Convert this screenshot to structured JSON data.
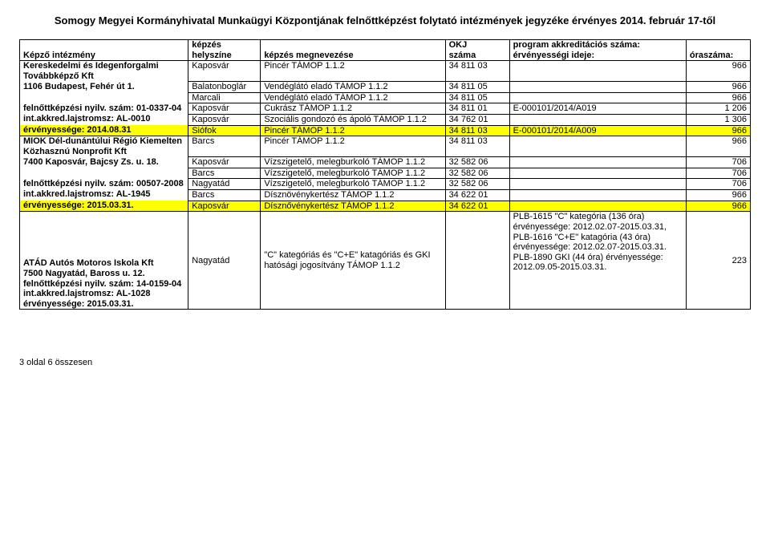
{
  "title": "Somogy Megyei Kormányhivatal Munkaügyi Központjának felnőttképzést folytató intézmények jegyzéke  érvényes 2014. február 17-től",
  "headers": {
    "col1": "Képző intézmény",
    "col2_a": "képzés",
    "col2_b": "helyszíne",
    "col3": "képzés megnevezése",
    "col4_a": "OKJ",
    "col4_b": "száma",
    "col5_a": "program akkreditációs száma:",
    "col5_b": "érvényességi ideje:",
    "col6": "óraszáma:"
  },
  "rows": [
    {
      "c1": "Kereskedelmi és Idegenforgalmi Továbbképző Kft",
      "c2": "Kaposvár",
      "c3": "Pincér TÁMOP 1.1.2",
      "c4": "34 811 03",
      "c5": "",
      "c6": "966"
    },
    {
      "c1": "1106 Budapest, Fehér út 1.",
      "c2": "Balatonboglár",
      "c3": "Vendéglátó eladó TÁMOP 1.1.2",
      "c4": "34 811 05",
      "c5": "",
      "c6": "966"
    },
    {
      "c1": "",
      "c2": "Marcali",
      "c3": "Vendéglátó eladó TÁMOP 1.1.2",
      "c4": "34 811 05",
      "c5": "",
      "c6": "966"
    },
    {
      "c1": "felnőttképzési nyilv. szám: 01-0337-04",
      "c2": "Kaposvár",
      "c3": "Cukrász TÁMOP 1.1.2",
      "c4": "34 811 01",
      "c5": "E-000101/2014/A019",
      "c6": "1 206"
    },
    {
      "c1": "int.akkred.lajstromsz: AL-0010",
      "c2": "Kaposvár",
      "c3": "Szociális gondozó és ápoló TÁMOP 1.1.2",
      "c4": "34 762 01",
      "c5": "",
      "c6": "1 306"
    },
    {
      "c1": "érvényessége: 2014.08.31",
      "c2": "Siófok",
      "c3": "Pincér TÁMOP 1.1.2",
      "c4": "34 811 03",
      "c5": "E-000101/2014/A009",
      "c6": "966",
      "hl": true
    },
    {
      "c1": "MIOK Dél-dunántúlui Régió Kiemelten Közhasznú Nonprofit Kft",
      "c2": "Barcs",
      "c3": "Pincér TÁMOP 1.1.2",
      "c4": "34 811 03",
      "c5": "",
      "c6": "966"
    },
    {
      "c1": "7400 Kaposvár, Bajcsy Zs. u. 18.",
      "c2": "Kaposvár",
      "c3": "Vízszigetelő, melegburkoló    TÁMOP 1.1.2",
      "c4": "32 582 06",
      "c5": "",
      "c6": "706"
    },
    {
      "c1": "",
      "c2": "Barcs",
      "c3": "Vízszigetelő, melegburkoló    TÁMOP 1.1.2",
      "c4": "32 582 06",
      "c5": "",
      "c6": "706"
    },
    {
      "c1": "felnőttképzési nyilv. szám: 00507-2008",
      "c2": "Nagyatád",
      "c3": "Vízszigetelő, melegburkoló    TÁMOP 1.1.2",
      "c4": "32 582 06",
      "c5": "",
      "c6": "706"
    },
    {
      "c1": "int.akkred.lajstromsz: AL-1945",
      "c2": "Barcs",
      "c3": "Dísznövénykertész TÁMOP 1.1.2",
      "c4": "34 622 01",
      "c5": "",
      "c6": "966"
    },
    {
      "c1": "érvényessége: 2015.03.31.",
      "c2": "Kaposvár",
      "c3": "Dísznővénykertész TÁMOP 1.1.2",
      "c4": "34 622 01",
      "c5": "",
      "c6": "966",
      "hl": true
    }
  ],
  "bottom": {
    "c1_lines": [
      "ATÁD Autós Motoros Iskola Kft",
      "7500 Nagyatád, Baross u. 12.",
      "felnőttképzési nyilv. szám: 14-0159-04",
      "int.akkred.lajstromsz: AL-1028",
      "érvényessége: 2015.03.31."
    ],
    "c2": "Nagyatád",
    "c3": "\"C\" kategóriás és \"C+E\" katagóriás és GKI hatósági jogosítvány TÁMOP 1.1.2",
    "c4": "",
    "c5": "PLB-1615 \"C\" kategória (136 óra) érvényessége: 2012.02.07-2015.03.31,                    PLB-1616 \"C+E\" katagória (43 óra) érvényessége: 2012.02.07-2015.03.31.                   PLB-1890 GKI (44 óra) érvényessége: 2012.09.05-2015.03.31.",
    "c6": "223"
  },
  "footer": "3 oldal 6 összesen"
}
